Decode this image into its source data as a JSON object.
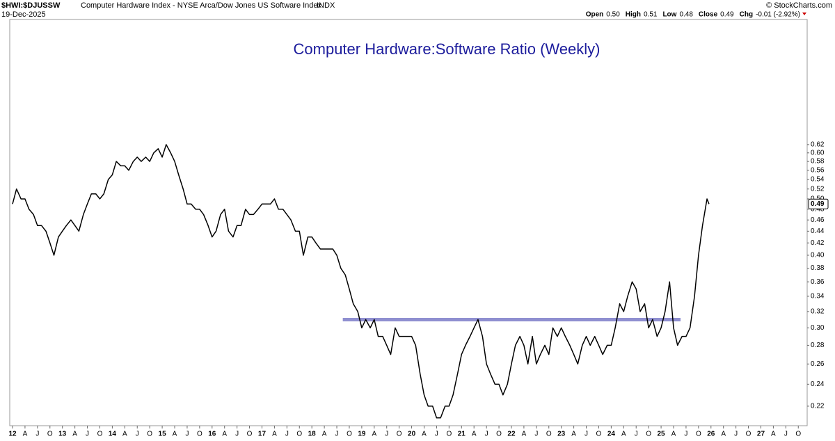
{
  "header": {
    "symbol": "$HWI:$DJUSSW",
    "description": "Computer Hardware Index - NYSE Arca/Dow Jones US Software Index",
    "exchange": "INDX",
    "date": "19-Dec-2025",
    "quote": [
      {
        "label": "Open",
        "value": "0.50"
      },
      {
        "label": "High",
        "value": "0.51"
      },
      {
        "label": "Low",
        "value": "0.48"
      },
      {
        "label": "Close",
        "value": "0.49"
      },
      {
        "label": "Chg",
        "value": "-0.01 (-2.92%)"
      }
    ],
    "copyright": "© StockCharts.com"
  },
  "chart_data": {
    "type": "line",
    "title": "Computer Hardware:Software Ratio (Weekly)",
    "log_scale": true,
    "grid": false,
    "xlim": [
      2012,
      2027.9
    ],
    "ylim": [
      0.2,
      1.0
    ],
    "xticks": [
      {
        "value": 2012,
        "label": "12"
      },
      {
        "value": 2012.25,
        "label": "A"
      },
      {
        "value": 2012.5,
        "label": "J"
      },
      {
        "value": 2012.75,
        "label": "O"
      },
      {
        "value": 2013,
        "label": "13"
      },
      {
        "value": 2013.25,
        "label": "A"
      },
      {
        "value": 2013.5,
        "label": "J"
      },
      {
        "value": 2013.75,
        "label": "O"
      },
      {
        "value": 2014,
        "label": "14"
      },
      {
        "value": 2014.25,
        "label": "A"
      },
      {
        "value": 2014.5,
        "label": "J"
      },
      {
        "value": 2014.75,
        "label": "O"
      },
      {
        "value": 2015,
        "label": "15"
      },
      {
        "value": 2015.25,
        "label": "A"
      },
      {
        "value": 2015.5,
        "label": "J"
      },
      {
        "value": 2015.75,
        "label": "O"
      },
      {
        "value": 2016,
        "label": "16"
      },
      {
        "value": 2016.25,
        "label": "A"
      },
      {
        "value": 2016.5,
        "label": "J"
      },
      {
        "value": 2016.75,
        "label": "O"
      },
      {
        "value": 2017,
        "label": "17"
      },
      {
        "value": 2017.25,
        "label": "A"
      },
      {
        "value": 2017.5,
        "label": "J"
      },
      {
        "value": 2017.75,
        "label": "O"
      },
      {
        "value": 2018,
        "label": "18"
      },
      {
        "value": 2018.25,
        "label": "A"
      },
      {
        "value": 2018.5,
        "label": "J"
      },
      {
        "value": 2018.75,
        "label": "O"
      },
      {
        "value": 2019,
        "label": "19"
      },
      {
        "value": 2019.25,
        "label": "A"
      },
      {
        "value": 2019.5,
        "label": "J"
      },
      {
        "value": 2019.75,
        "label": "O"
      },
      {
        "value": 2020,
        "label": "20"
      },
      {
        "value": 2020.25,
        "label": "A"
      },
      {
        "value": 2020.5,
        "label": "J"
      },
      {
        "value": 2020.75,
        "label": "O"
      },
      {
        "value": 2021,
        "label": "21"
      },
      {
        "value": 2021.25,
        "label": "A"
      },
      {
        "value": 2021.5,
        "label": "J"
      },
      {
        "value": 2021.75,
        "label": "O"
      },
      {
        "value": 2022,
        "label": "22"
      },
      {
        "value": 2022.25,
        "label": "A"
      },
      {
        "value": 2022.5,
        "label": "J"
      },
      {
        "value": 2022.75,
        "label": "O"
      },
      {
        "value": 2023,
        "label": "23"
      },
      {
        "value": 2023.25,
        "label": "A"
      },
      {
        "value": 2023.5,
        "label": "J"
      },
      {
        "value": 2023.75,
        "label": "O"
      },
      {
        "value": 2024,
        "label": "24"
      },
      {
        "value": 2024.25,
        "label": "A"
      },
      {
        "value": 2024.5,
        "label": "J"
      },
      {
        "value": 2024.75,
        "label": "O"
      },
      {
        "value": 2025,
        "label": "25"
      },
      {
        "value": 2025.25,
        "label": "A"
      },
      {
        "value": 2025.5,
        "label": "J"
      },
      {
        "value": 2025.75,
        "label": "O"
      },
      {
        "value": 2026,
        "label": "26"
      },
      {
        "value": 2026.25,
        "label": "A"
      },
      {
        "value": 2026.5,
        "label": "J"
      },
      {
        "value": 2026.75,
        "label": "O"
      },
      {
        "value": 2027,
        "label": "27"
      },
      {
        "value": 2027.25,
        "label": "A"
      },
      {
        "value": 2027.5,
        "label": "J"
      },
      {
        "value": 2027.75,
        "label": "O"
      }
    ],
    "yticks": [
      0.22,
      0.24,
      0.26,
      0.28,
      {
        "value": 0.3,
        "label": "0.30"
      },
      0.32,
      0.34,
      0.36,
      0.38,
      {
        "value": 0.4,
        "label": "0.40"
      },
      0.42,
      0.44,
      0.46,
      0.48,
      {
        "value": 0.5,
        "label": "0.50"
      },
      0.52,
      0.54,
      0.56,
      0.58,
      {
        "value": 0.6,
        "label": "0.60"
      },
      0.62
    ],
    "x": [
      2012,
      2012.08,
      2012.17,
      2012.25,
      2012.33,
      2012.42,
      2012.5,
      2012.58,
      2012.67,
      2012.75,
      2012.83,
      2012.92,
      2013,
      2013.08,
      2013.17,
      2013.25,
      2013.33,
      2013.42,
      2013.5,
      2013.58,
      2013.67,
      2013.75,
      2013.83,
      2013.92,
      2014,
      2014.08,
      2014.17,
      2014.25,
      2014.33,
      2014.42,
      2014.5,
      2014.58,
      2014.67,
      2014.75,
      2014.83,
      2014.92,
      2015,
      2015.08,
      2015.17,
      2015.25,
      2015.33,
      2015.42,
      2015.5,
      2015.58,
      2015.67,
      2015.75,
      2015.83,
      2015.92,
      2016,
      2016.08,
      2016.17,
      2016.25,
      2016.33,
      2016.42,
      2016.5,
      2016.58,
      2016.67,
      2016.75,
      2016.83,
      2016.92,
      2017,
      2017.08,
      2017.17,
      2017.25,
      2017.33,
      2017.42,
      2017.5,
      2017.58,
      2017.67,
      2017.75,
      2017.83,
      2017.92,
      2018,
      2018.08,
      2018.17,
      2018.25,
      2018.33,
      2018.42,
      2018.5,
      2018.58,
      2018.67,
      2018.75,
      2018.83,
      2018.92,
      2019,
      2019.08,
      2019.17,
      2019.25,
      2019.33,
      2019.42,
      2019.5,
      2019.58,
      2019.67,
      2019.75,
      2019.83,
      2019.92,
      2020,
      2020.08,
      2020.17,
      2020.25,
      2020.33,
      2020.42,
      2020.5,
      2020.58,
      2020.67,
      2020.75,
      2020.83,
      2020.92,
      2021,
      2021.08,
      2021.17,
      2021.25,
      2021.33,
      2021.42,
      2021.5,
      2021.58,
      2021.67,
      2021.75,
      2021.83,
      2021.92,
      2022,
      2022.08,
      2022.17,
      2022.25,
      2022.33,
      2022.42,
      2022.5,
      2022.58,
      2022.67,
      2022.75,
      2022.83,
      2022.92,
      2023,
      2023.08,
      2023.17,
      2023.25,
      2023.33,
      2023.42,
      2023.5,
      2023.58,
      2023.67,
      2023.75,
      2023.83,
      2023.92,
      2024,
      2024.08,
      2024.17,
      2024.25,
      2024.33,
      2024.42,
      2024.5,
      2024.58,
      2024.67,
      2024.75,
      2024.83,
      2024.92,
      2025,
      2025.08,
      2025.17,
      2025.25,
      2025.33,
      2025.42,
      2025.5,
      2025.58,
      2025.67,
      2025.75,
      2025.83,
      2025.92,
      2025.96
    ],
    "series": [
      {
        "color": "#000000",
        "values": [
          0.49,
          0.52,
          0.5,
          0.5,
          0.48,
          0.47,
          0.45,
          0.45,
          0.44,
          0.42,
          0.4,
          0.43,
          0.44,
          0.45,
          0.46,
          0.45,
          0.44,
          0.47,
          0.49,
          0.51,
          0.51,
          0.5,
          0.51,
          0.54,
          0.55,
          0.58,
          0.57,
          0.57,
          0.56,
          0.58,
          0.59,
          0.58,
          0.59,
          0.58,
          0.6,
          0.61,
          0.59,
          0.62,
          0.6,
          0.58,
          0.55,
          0.52,
          0.49,
          0.49,
          0.48,
          0.48,
          0.47,
          0.45,
          0.43,
          0.44,
          0.47,
          0.48,
          0.44,
          0.43,
          0.45,
          0.45,
          0.48,
          0.47,
          0.47,
          0.48,
          0.49,
          0.49,
          0.49,
          0.5,
          0.48,
          0.48,
          0.47,
          0.46,
          0.44,
          0.44,
          0.4,
          0.43,
          0.43,
          0.42,
          0.41,
          0.41,
          0.41,
          0.41,
          0.4,
          0.38,
          0.37,
          0.35,
          0.33,
          0.32,
          0.3,
          0.31,
          0.3,
          0.31,
          0.29,
          0.29,
          0.28,
          0.27,
          0.3,
          0.29,
          0.29,
          0.29,
          0.29,
          0.28,
          0.25,
          0.23,
          0.22,
          0.22,
          0.21,
          0.21,
          0.22,
          0.22,
          0.23,
          0.25,
          0.27,
          0.28,
          0.29,
          0.3,
          0.31,
          0.29,
          0.26,
          0.25,
          0.24,
          0.24,
          0.23,
          0.24,
          0.26,
          0.28,
          0.29,
          0.28,
          0.26,
          0.29,
          0.26,
          0.27,
          0.28,
          0.27,
          0.3,
          0.29,
          0.3,
          0.29,
          0.28,
          0.27,
          0.26,
          0.28,
          0.29,
          0.28,
          0.29,
          0.28,
          0.27,
          0.28,
          0.28,
          0.3,
          0.33,
          0.32,
          0.34,
          0.36,
          0.35,
          0.32,
          0.33,
          0.3,
          0.31,
          0.29,
          0.3,
          0.32,
          0.36,
          0.3,
          0.28,
          0.29,
          0.29,
          0.3,
          0.34,
          0.4,
          0.45,
          0.5,
          0.49
        ]
      }
    ],
    "reference_line": {
      "value": 0.31,
      "x": [
        2018.62,
        2025.39
      ],
      "color": "#8f8fd0"
    }
  }
}
